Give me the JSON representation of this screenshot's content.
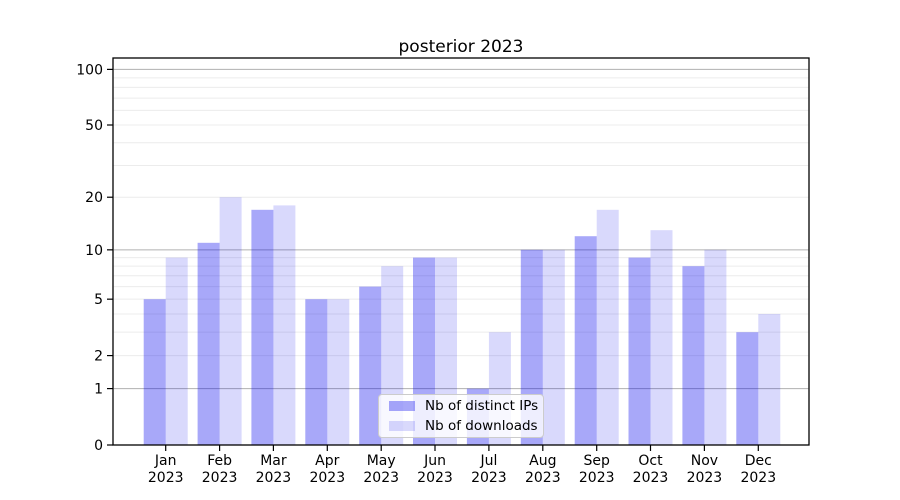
{
  "chart_data": {
    "type": "bar",
    "title": "posterior 2023",
    "categories": [
      "Jan",
      "Feb",
      "Mar",
      "Apr",
      "May",
      "Jun",
      "Jul",
      "Aug",
      "Sep",
      "Oct",
      "Nov",
      "Dec"
    ],
    "x_tick_second_line": "2023",
    "series": [
      {
        "name": "Nb of distinct IPs",
        "color": "#0000ee",
        "alpha": 0.34,
        "values": [
          5,
          11,
          17,
          5,
          6,
          9,
          1,
          10,
          12,
          9,
          8,
          3
        ]
      },
      {
        "name": "Nb of downloads",
        "color": "#0000ee",
        "alpha": 0.15,
        "values": [
          9,
          20,
          18,
          5,
          8,
          9,
          3,
          10,
          17,
          13,
          10,
          4
        ]
      }
    ],
    "yscale": "log1p",
    "ylim": [
      0,
      115
    ],
    "yticks": [
      0,
      1,
      2,
      5,
      10,
      20,
      50,
      100
    ],
    "gridlines": {
      "major": [
        1,
        10,
        100
      ],
      "minor": [
        2,
        3,
        4,
        5,
        6,
        7,
        8,
        9,
        20,
        30,
        40,
        50,
        60,
        70,
        80,
        90
      ]
    },
    "grid": true,
    "legend": {
      "position": "lower center"
    },
    "colors": {
      "axis": "#000000",
      "text": "#000000",
      "major_grid": "#b0b0b0",
      "minor_grid": "#ececec",
      "legend_border": "#cccccc",
      "legend_bg": "rgba(255,255,255,0.8)"
    }
  }
}
